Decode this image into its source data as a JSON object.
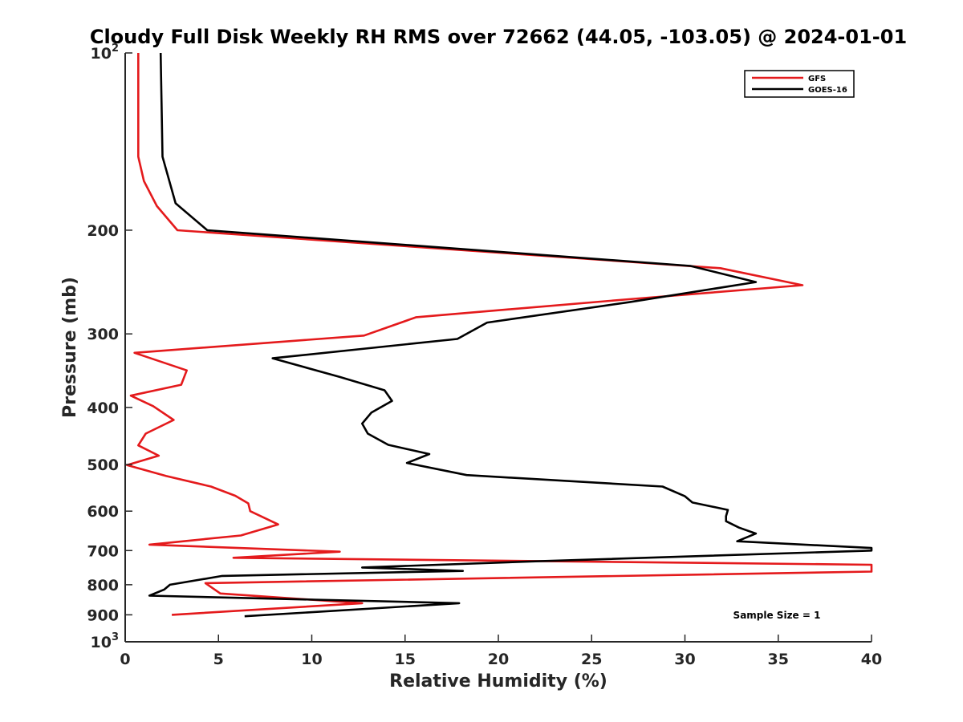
{
  "chart_data": {
    "type": "line",
    "title": "Cloudy Full Disk Weekly RH RMS over 72662 (44.05, -103.05) @ 2024-01-01",
    "xlabel": "Relative Humidity (%)",
    "ylabel": "Pressure (mb)",
    "xlim": [
      0,
      40
    ],
    "ylim": [
      100,
      1000
    ],
    "y_scale": "log",
    "y_reversed": true,
    "x_ticks": [
      "0",
      "5",
      "10",
      "15",
      "20",
      "25",
      "30",
      "35",
      "40"
    ],
    "y_ticks": [
      {
        "value": 100,
        "base": "10",
        "exp": "2"
      },
      {
        "value": 200,
        "label": "200"
      },
      {
        "value": 300,
        "label": "300"
      },
      {
        "value": 400,
        "label": "400"
      },
      {
        "value": 500,
        "label": "500"
      },
      {
        "value": 600,
        "label": "600"
      },
      {
        "value": 700,
        "label": "700"
      },
      {
        "value": 800,
        "label": "800"
      },
      {
        "value": 900,
        "label": "900"
      },
      {
        "value": 1000,
        "base": "10",
        "exp": "3"
      }
    ],
    "legend_position": "top-right",
    "annotation": "Sample Size = 1",
    "series": [
      {
        "name": "GFS",
        "color": "#e41a1c",
        "points": [
          [
            0.7,
            100
          ],
          [
            0.7,
            150
          ],
          [
            1.0,
            165
          ],
          [
            1.7,
            182
          ],
          [
            2.8,
            200
          ],
          [
            31.9,
            232
          ],
          [
            36.3,
            248
          ],
          [
            27,
            262
          ],
          [
            15.6,
            281
          ],
          [
            12.8,
            302
          ],
          [
            0.5,
            323
          ],
          [
            3.3,
            346
          ],
          [
            3.0,
            366
          ],
          [
            0.3,
            382
          ],
          [
            1.5,
            398
          ],
          [
            2.6,
            420
          ],
          [
            1.1,
            443
          ],
          [
            0.7,
            464
          ],
          [
            1.8,
            483
          ],
          [
            0.1,
            501
          ],
          [
            2.2,
            523
          ],
          [
            4.6,
            545
          ],
          [
            5.9,
            565
          ],
          [
            6.6,
            582
          ],
          [
            6.7,
            600
          ],
          [
            8.2,
            632
          ],
          [
            6.2,
            660
          ],
          [
            1.3,
            684
          ],
          [
            11.5,
            703
          ],
          [
            5.8,
            720
          ],
          [
            40,
            740
          ],
          [
            40,
            760
          ],
          [
            4.3,
            795
          ],
          [
            5.1,
            828
          ],
          [
            12.7,
            860
          ],
          [
            2.5,
            900
          ]
        ]
      },
      {
        "name": "GOES-16",
        "color": "#000000",
        "points": [
          [
            1.9,
            100
          ],
          [
            2.0,
            150
          ],
          [
            2.7,
            180
          ],
          [
            4.4,
            200
          ],
          [
            30.3,
            230
          ],
          [
            33.8,
            245
          ],
          [
            27,
            265
          ],
          [
            19.4,
            287
          ],
          [
            17.8,
            306
          ],
          [
            7.9,
            330
          ],
          [
            11.5,
            355
          ],
          [
            13.9,
            374
          ],
          [
            14.3,
            390
          ],
          [
            13.2,
            408
          ],
          [
            12.7,
            426
          ],
          [
            13,
            443
          ],
          [
            14.1,
            463
          ],
          [
            16.3,
            480
          ],
          [
            15.1,
            497
          ],
          [
            18.3,
            521
          ],
          [
            28.8,
            545
          ],
          [
            30,
            566
          ],
          [
            30.4,
            580
          ],
          [
            32.3,
            597
          ],
          [
            32.2,
            612
          ],
          [
            32.2,
            624
          ],
          [
            32.9,
            640
          ],
          [
            33.8,
            655
          ],
          [
            32.8,
            675
          ],
          [
            40,
            693
          ],
          [
            40,
            700
          ],
          [
            22,
            730
          ],
          [
            12.7,
            748
          ],
          [
            18.1,
            758
          ],
          [
            5.2,
            773
          ],
          [
            2.4,
            800
          ],
          [
            2.1,
            815
          ],
          [
            1.3,
            835
          ],
          [
            17.9,
            860
          ],
          [
            6.4,
            905
          ]
        ]
      }
    ]
  }
}
